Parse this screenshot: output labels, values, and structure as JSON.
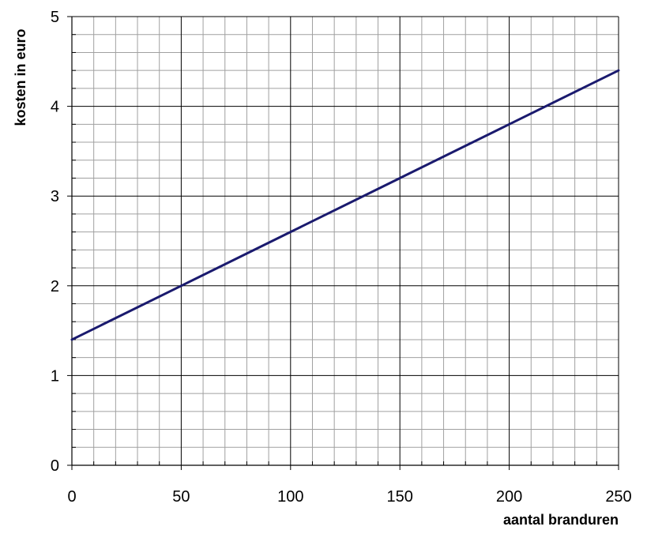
{
  "chart_data": {
    "type": "line",
    "title": "",
    "xlabel": "aantal branduren",
    "ylabel": "kosten in euro",
    "xlim": [
      0,
      250
    ],
    "ylim": [
      0,
      5
    ],
    "x_ticks": [
      0,
      50,
      100,
      150,
      200,
      250
    ],
    "y_ticks": [
      0,
      1,
      2,
      3,
      4,
      5
    ],
    "x_minor_step": 10,
    "y_minor_step": 0.2,
    "grid": true,
    "legend": "none",
    "series": [
      {
        "color": "#1a1a6e",
        "x": [
          0,
          50,
          100,
          150,
          200,
          250
        ],
        "y": [
          1.4,
          2.0,
          2.6,
          3.2,
          3.8,
          4.4
        ]
      }
    ],
    "colors": {
      "line": "#1a1a6e",
      "major_grid": "#000000",
      "minor_grid": "#a0a0a0",
      "axis": "#000000"
    }
  }
}
